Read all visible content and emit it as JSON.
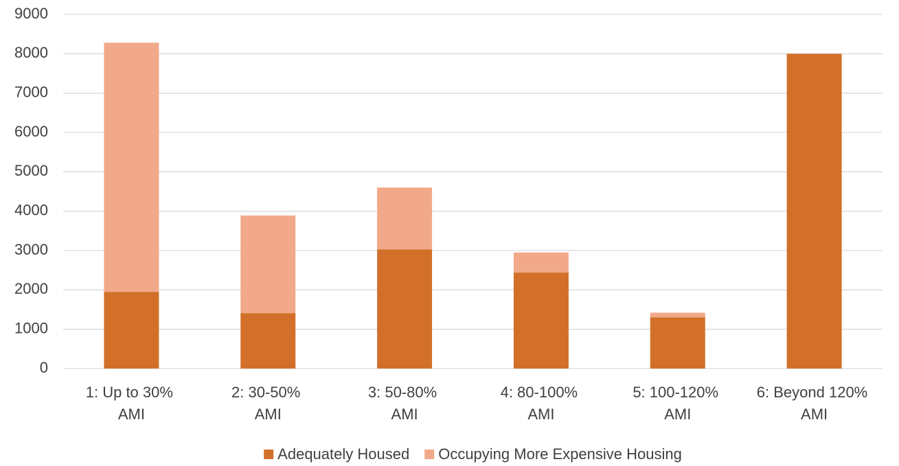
{
  "chart_data": {
    "type": "stacked_bar",
    "categories": [
      "1: Up to 30% AMI",
      "2: 30-50% AMI",
      "3: 50-80% AMI",
      "4: 80-100% AMI",
      "5: 100-120% AMI",
      "6: Beyond 120% AMI"
    ],
    "series": [
      {
        "name": "Adequately Housed",
        "color": "#d2702a",
        "values": [
          1950,
          1410,
          3030,
          2440,
          1300,
          8000
        ]
      },
      {
        "name": "Occupying More Expensive Housing",
        "color": "#f2a98a",
        "values": [
          6330,
          2480,
          1570,
          510,
          120,
          0
        ]
      }
    ],
    "ylim": [
      0,
      9000
    ],
    "yticks": [
      0,
      1000,
      2000,
      3000,
      4000,
      5000,
      6000,
      7000,
      8000,
      9000
    ],
    "grid": true,
    "legend": "bottom"
  }
}
